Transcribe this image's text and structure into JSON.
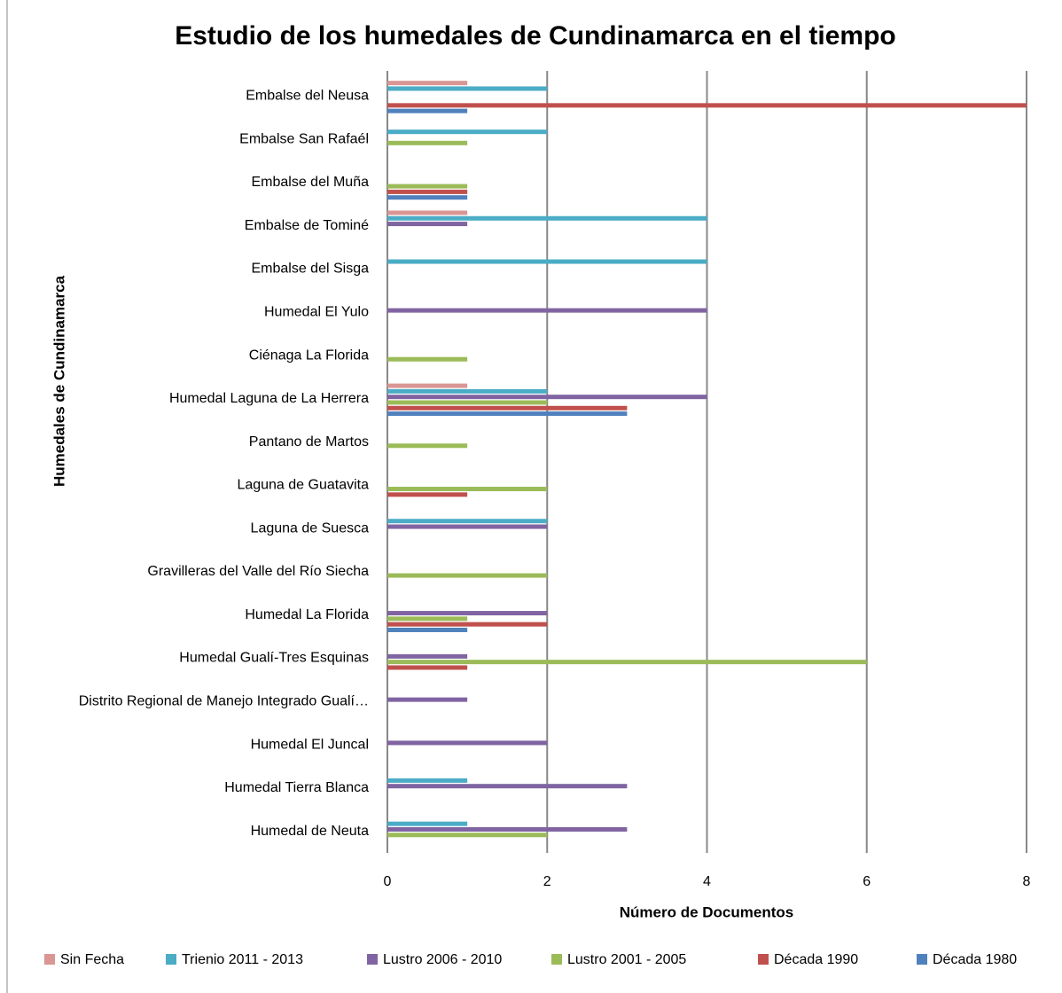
{
  "chart_data": {
    "type": "barh",
    "title": "Estudio de los humedales de Cundinamarca en el tiempo",
    "x_label": "Número de Documentos",
    "y_label": "Humedales de Cundinamarca",
    "categories": [
      "Embalse del Neusa",
      "Embalse San Rafaél",
      "Embalse del Muña",
      "Embalse de Tominé",
      "Embalse del Sisga",
      "Humedal El Yulo",
      "Ciénaga La Florida",
      "Humedal Laguna de La Herrera",
      "Pantano de Martos",
      "Laguna de Guatavita",
      "Laguna de Suesca",
      "Gravilleras del Valle del Río Siecha",
      "Humedal La Florida",
      "Humedal Gualí-Tres Esquinas",
      "Distrito Regional de Manejo Integrado Gualí…",
      "Humedal El Juncal",
      "Humedal Tierra Blanca",
      "Humedal de Neuta"
    ],
    "series": [
      {
        "name": "Sin Fecha",
        "color": "#d99694",
        "values": [
          1,
          0,
          0,
          1,
          0,
          0,
          0,
          1,
          0,
          0,
          0,
          0,
          0,
          0,
          0,
          0,
          0,
          0
        ]
      },
      {
        "name": "Trienio 2011 - 2013",
        "color": "#4bacc6",
        "values": [
          2,
          2,
          0,
          4,
          4,
          0,
          0,
          2,
          0,
          0,
          2,
          0,
          0,
          0,
          0,
          0,
          1,
          1
        ]
      },
      {
        "name": "Lustro 2006 - 2010",
        "color": "#8064a2",
        "values": [
          0,
          0,
          0,
          1,
          0,
          4,
          0,
          4,
          0,
          0,
          2,
          0,
          2,
          1,
          1,
          2,
          3,
          3
        ]
      },
      {
        "name": "Lustro 2001 - 2005",
        "color": "#9bbb59",
        "values": [
          0,
          1,
          1,
          0,
          0,
          0,
          1,
          2,
          1,
          2,
          0,
          2,
          1,
          6,
          0,
          0,
          0,
          2
        ]
      },
      {
        "name": "Década 1990",
        "color": "#c0504d",
        "values": [
          8,
          0,
          1,
          0,
          0,
          0,
          0,
          3,
          0,
          1,
          0,
          0,
          2,
          1,
          0,
          0,
          0,
          0
        ]
      },
      {
        "name": "Década 1980",
        "color": "#4f81bd",
        "values": [
          1,
          0,
          1,
          0,
          0,
          0,
          0,
          3,
          0,
          0,
          0,
          0,
          1,
          0,
          0,
          0,
          0,
          0
        ]
      }
    ],
    "xlim": [
      0,
      8
    ],
    "xticks": [
      0,
      2,
      4,
      6,
      8
    ],
    "grid": true,
    "legend": "bottom"
  }
}
